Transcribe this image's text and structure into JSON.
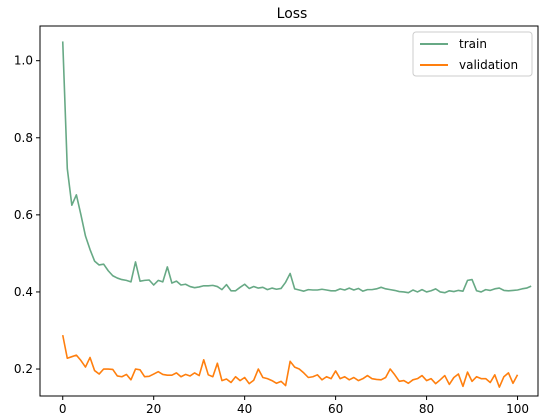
{
  "chart_data": {
    "type": "line",
    "title": "Loss",
    "xlabel": "",
    "ylabel": "",
    "xlim": [
      -5,
      104.5
    ],
    "ylim": [
      0.13,
      1.09
    ],
    "xticks": [
      0,
      20,
      40,
      60,
      80,
      100
    ],
    "yticks": [
      0.2,
      0.4,
      0.6,
      0.8,
      1.0
    ],
    "xtick_labels": [
      "0",
      "20",
      "40",
      "60",
      "80",
      "100"
    ],
    "ytick_labels": [
      "0.2",
      "0.4",
      "0.6",
      "0.8",
      "1.0"
    ],
    "grid": false,
    "legend_position": "top-right",
    "series": [
      {
        "name": "train",
        "color": "#67a985",
        "values": [
          1.05,
          0.72,
          0.625,
          0.652,
          0.6,
          0.545,
          0.51,
          0.48,
          0.47,
          0.472,
          0.455,
          0.442,
          0.436,
          0.432,
          0.43,
          0.426,
          0.478,
          0.428,
          0.43,
          0.431,
          0.418,
          0.43,
          0.426,
          0.465,
          0.423,
          0.428,
          0.418,
          0.42,
          0.414,
          0.411,
          0.413,
          0.416,
          0.416,
          0.417,
          0.414,
          0.406,
          0.419,
          0.403,
          0.403,
          0.412,
          0.42,
          0.409,
          0.414,
          0.41,
          0.412,
          0.406,
          0.41,
          0.407,
          0.409,
          0.425,
          0.448,
          0.408,
          0.405,
          0.402,
          0.406,
          0.405,
          0.405,
          0.407,
          0.405,
          0.403,
          0.403,
          0.408,
          0.405,
          0.41,
          0.405,
          0.409,
          0.402,
          0.406,
          0.406,
          0.408,
          0.412,
          0.408,
          0.406,
          0.404,
          0.401,
          0.4,
          0.398,
          0.405,
          0.4,
          0.406,
          0.4,
          0.403,
          0.408,
          0.4,
          0.398,
          0.403,
          0.401,
          0.404,
          0.402,
          0.43,
          0.432,
          0.403,
          0.4,
          0.406,
          0.404,
          0.408,
          0.41,
          0.404,
          0.403,
          0.404,
          0.405,
          0.408,
          0.41,
          0.415
        ]
      },
      {
        "name": "validation",
        "color": "#ff7f0e",
        "values": [
          0.288,
          0.228,
          0.232,
          0.236,
          0.222,
          0.205,
          0.23,
          0.196,
          0.187,
          0.2,
          0.2,
          0.199,
          0.182,
          0.18,
          0.186,
          0.172,
          0.2,
          0.198,
          0.18,
          0.181,
          0.187,
          0.193,
          0.186,
          0.184,
          0.184,
          0.19,
          0.18,
          0.186,
          0.182,
          0.19,
          0.183,
          0.224,
          0.185,
          0.18,
          0.215,
          0.17,
          0.174,
          0.165,
          0.18,
          0.17,
          0.178,
          0.162,
          0.171,
          0.2,
          0.178,
          0.175,
          0.17,
          0.163,
          0.168,
          0.157,
          0.22,
          0.205,
          0.2,
          0.19,
          0.178,
          0.18,
          0.185,
          0.172,
          0.18,
          0.175,
          0.195,
          0.175,
          0.18,
          0.172,
          0.178,
          0.17,
          0.175,
          0.183,
          0.175,
          0.173,
          0.172,
          0.178,
          0.2,
          0.185,
          0.168,
          0.17,
          0.163,
          0.172,
          0.175,
          0.183,
          0.17,
          0.175,
          0.162,
          0.172,
          0.183,
          0.16,
          0.178,
          0.187,
          0.155,
          0.192,
          0.168,
          0.18,
          0.175,
          0.175,
          0.165,
          0.185,
          0.153,
          0.18,
          0.19,
          0.163,
          0.185
        ]
      }
    ]
  }
}
